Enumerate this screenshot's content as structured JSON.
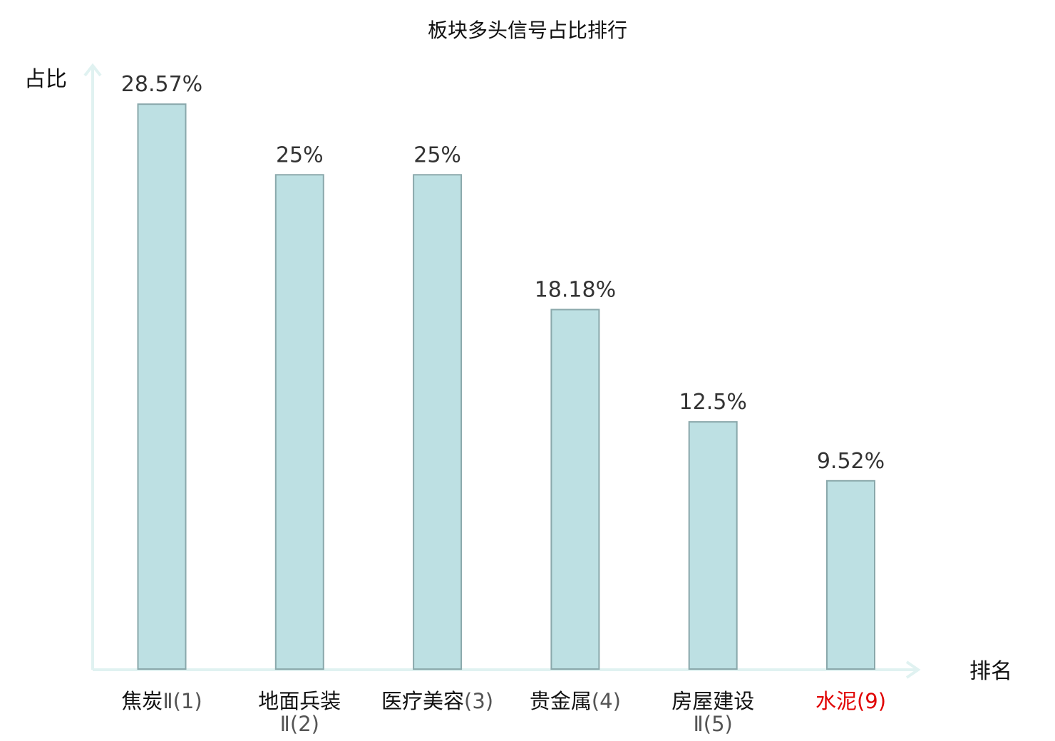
{
  "chart_data": {
    "type": "bar",
    "title": "板块多头信号占比排行",
    "ylabel": "占比",
    "xlabel": "排名",
    "ylim": [
      0,
      32
    ],
    "grid": false,
    "categories": [
      {
        "name": "焦炭",
        "suffix": "Ⅱ",
        "rank": "(1)",
        "highlight": false
      },
      {
        "name": "地面兵装",
        "suffix": "Ⅱ",
        "rank": "(2)",
        "highlight": false
      },
      {
        "name": "医疗美容",
        "suffix": "",
        "rank": "(3)",
        "highlight": false
      },
      {
        "name": "贵金属",
        "suffix": "",
        "rank": "(4)",
        "highlight": false
      },
      {
        "name": "房屋建设",
        "suffix": "Ⅱ",
        "rank": "(5)",
        "highlight": false
      },
      {
        "name": "水泥",
        "suffix": "",
        "rank": "(9)",
        "highlight": true
      }
    ],
    "values": [
      28.57,
      25,
      25,
      18.18,
      12.5,
      9.52
    ],
    "value_labels": [
      "28.57%",
      "25%",
      "25%",
      "18.18%",
      "12.5%",
      "9.52%"
    ]
  },
  "colors": {
    "bar_fill": "#bde0e3",
    "bar_stroke": "#8aa8ab",
    "axis": "#e0f2f1",
    "category_text": "#111111",
    "rank_text": "#555555",
    "highlight_text": "#e00000"
  }
}
